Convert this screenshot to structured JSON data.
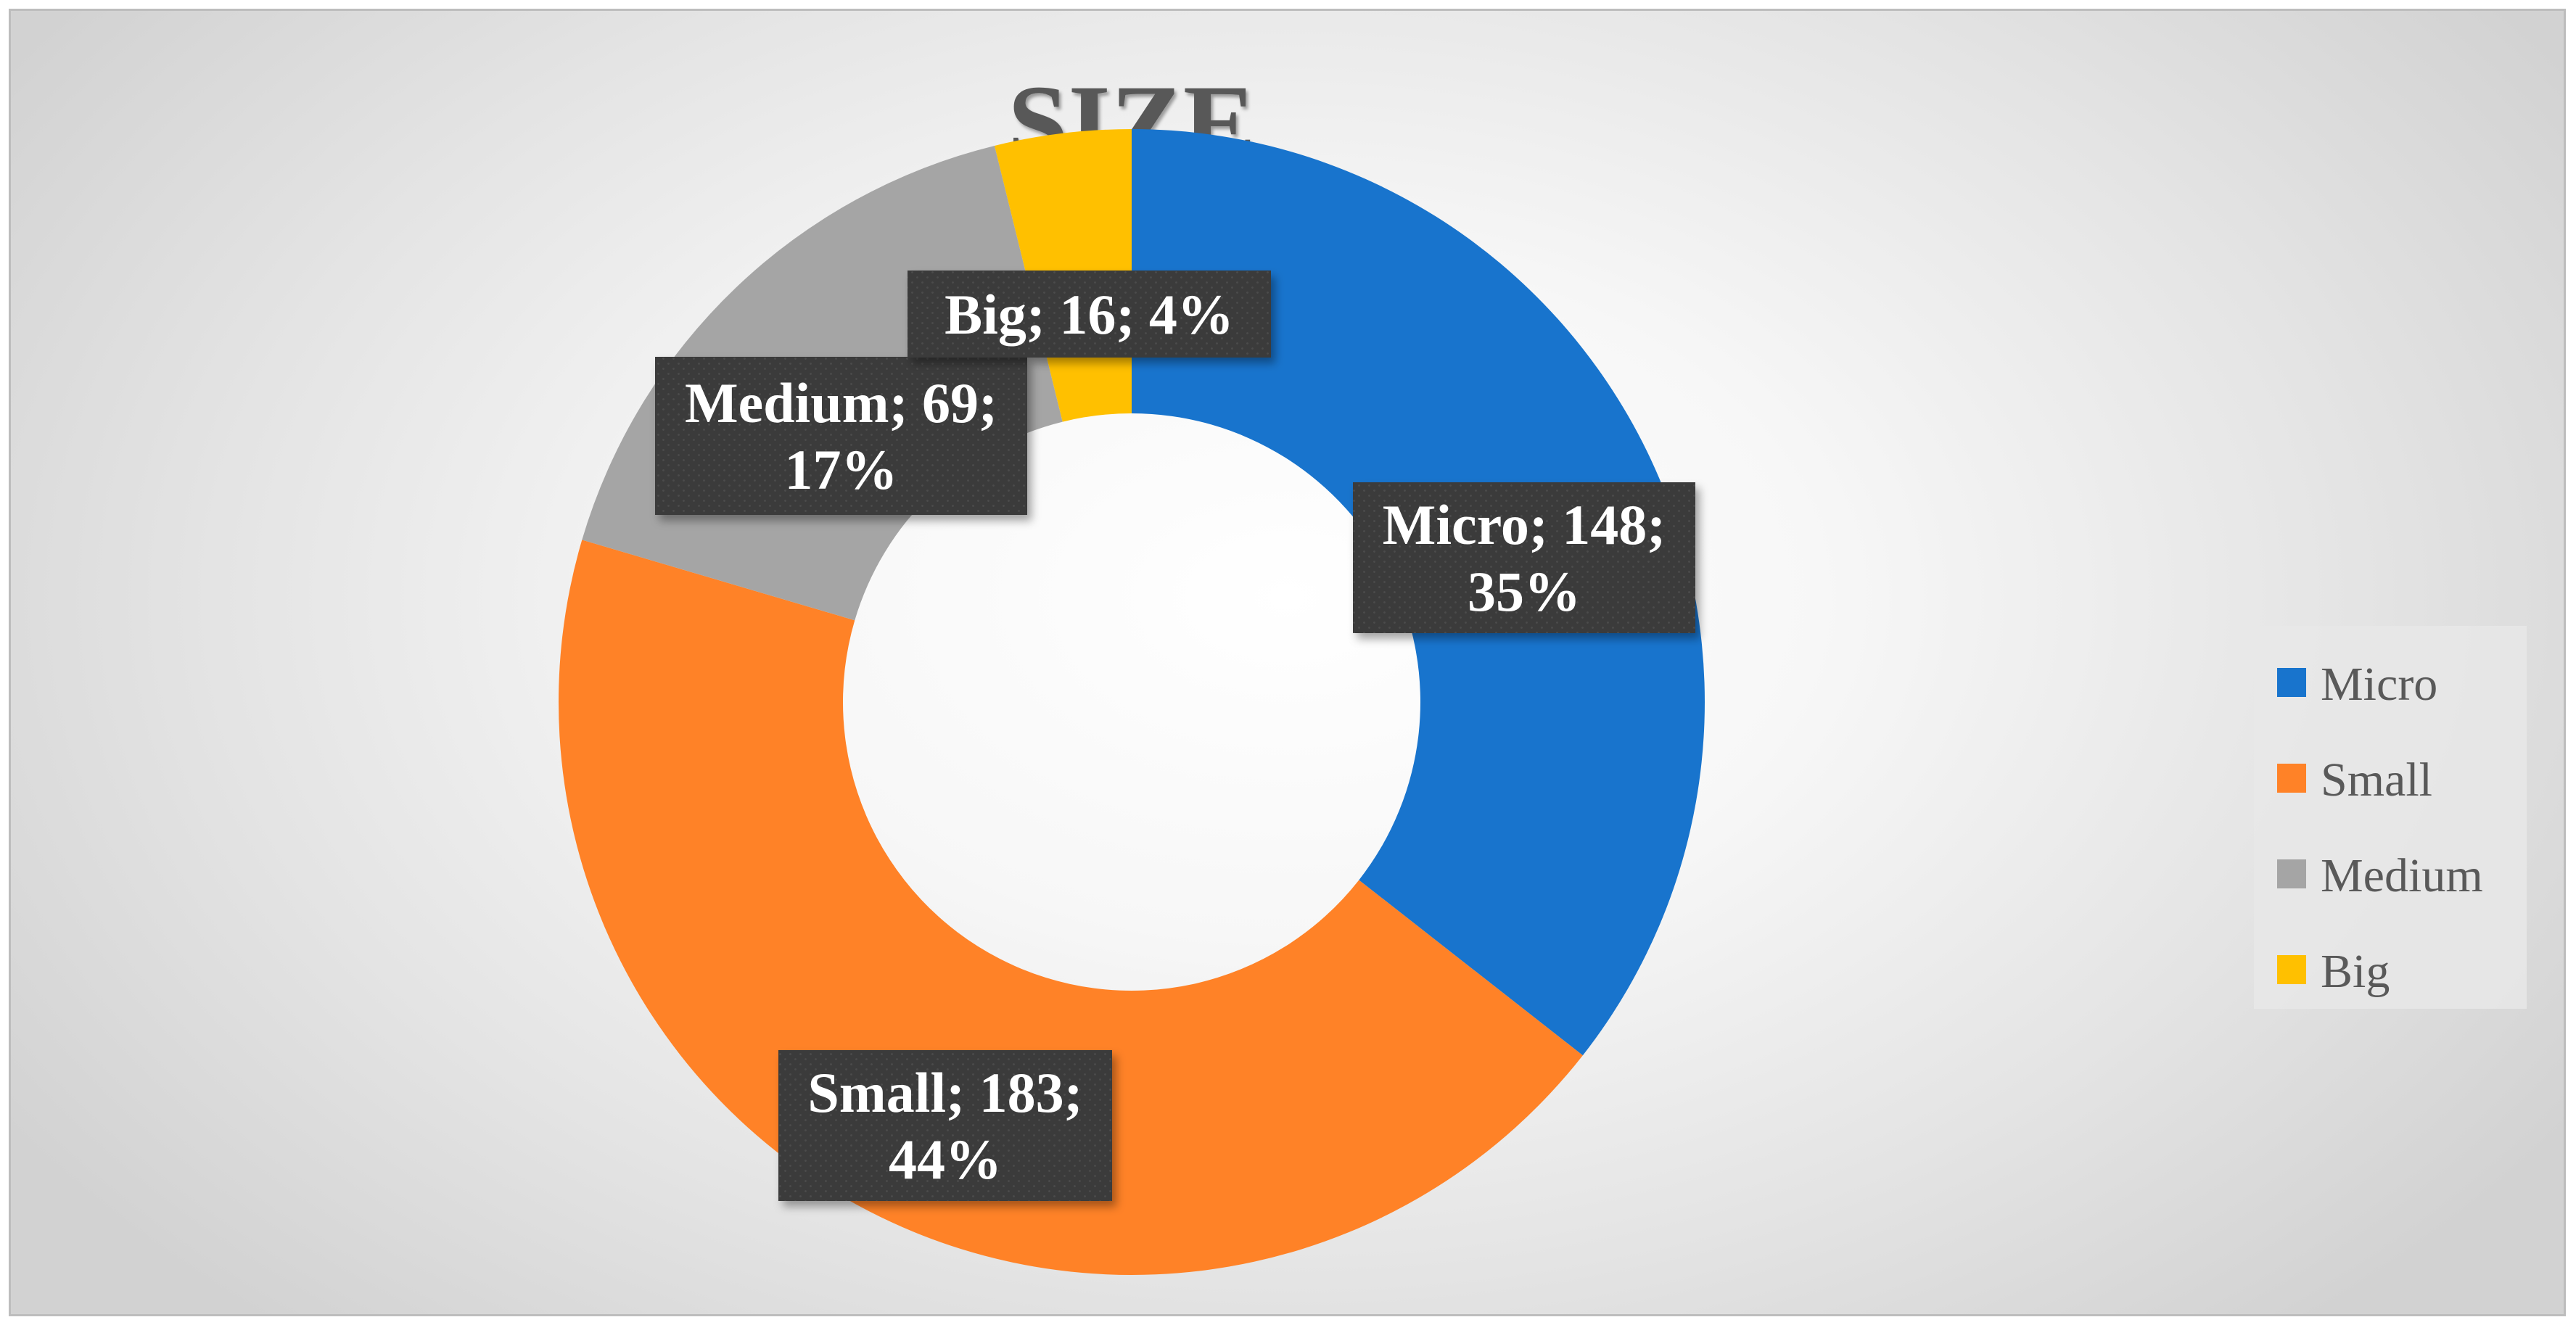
{
  "chart_data": {
    "type": "pie",
    "subtype": "doughnut",
    "title": "SIZE",
    "categories": [
      "Micro",
      "Small",
      "Medium",
      "Big"
    ],
    "values": [
      148,
      183,
      69,
      16
    ],
    "percentages": [
      "35%",
      "44%",
      "17%",
      "4%"
    ],
    "colors": [
      "#1874CD",
      "#FF8227",
      "#A5A5A5",
      "#FFC000"
    ],
    "data_labels": [
      [
        "Micro; 148;",
        "35%"
      ],
      [
        "Small; 183;",
        "44%"
      ],
      [
        "Medium; 69;",
        "17%"
      ],
      [
        "Big; 16; 4%"
      ]
    ],
    "legend": {
      "position": "right",
      "entries": [
        "Micro",
        "Small",
        "Medium",
        "Big"
      ]
    }
  }
}
